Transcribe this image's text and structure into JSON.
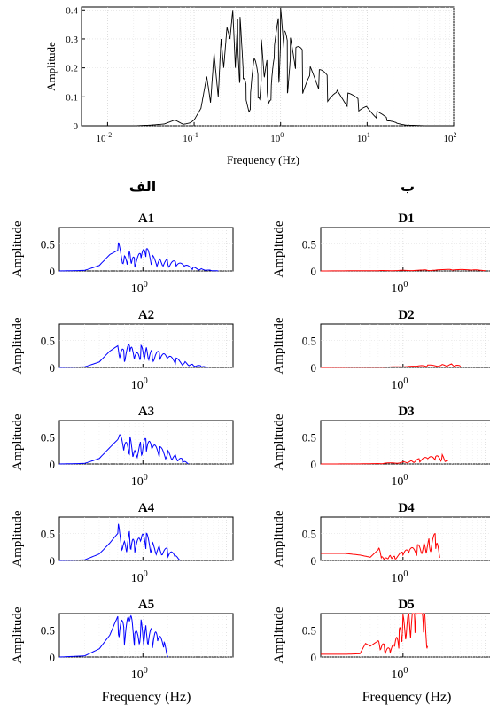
{
  "chart_data": [
    {
      "type": "line",
      "panel": "top",
      "title": "",
      "xlabel": "Frequency (Hz)",
      "ylabel": "Amplitude",
      "xscale": "log",
      "xlim": [
        0.005,
        100
      ],
      "ylim": [
        0,
        0.41
      ],
      "yticks": [
        "0",
        "0.1",
        "0.2",
        "0.3",
        "0.4"
      ],
      "xticks": [
        {
          "base": "10",
          "exp": "-2"
        },
        {
          "base": "10",
          "exp": "-1"
        },
        {
          "base": "10",
          "exp": "0"
        },
        {
          "base": "10",
          "exp": "1"
        },
        {
          "base": "10",
          "exp": "2"
        }
      ],
      "grid": true,
      "color": "#000000",
      "series": [
        {
          "x": [
            0.005,
            0.02,
            0.03,
            0.045,
            0.06,
            0.075,
            0.09,
            0.1,
            0.12,
            0.14,
            0.155,
            0.17,
            0.19,
            0.205,
            0.22,
            0.24,
            0.26,
            0.28,
            0.3,
            0.32,
            0.34,
            0.37,
            0.4,
            0.45,
            0.5,
            0.55,
            0.6,
            0.65,
            0.7,
            0.78,
            0.85,
            0.95,
            1.0,
            1.1,
            1.2,
            1.3,
            1.5,
            1.8,
            2.2,
            2.8,
            3.5,
            4.5,
            6,
            8,
            10,
            13,
            17,
            22,
            30,
            50,
            100
          ],
          "y": [
            0,
            0,
            0.002,
            0.006,
            0.02,
            0.005,
            0.01,
            0.02,
            0.06,
            0.17,
            0.08,
            0.25,
            0.1,
            0.3,
            0.2,
            0.34,
            0.3,
            0.4,
            0.2,
            0.28,
            0.26,
            0.15,
            0.1,
            0.08,
            0.2,
            0.12,
            0.21,
            0.14,
            0.16,
            0.1,
            0.22,
            0.26,
            0.3,
            0.25,
            0.2,
            0.23,
            0.2,
            0.18,
            0.16,
            0.14,
            0.12,
            0.1,
            0.08,
            0.065,
            0.055,
            0.035,
            0.02,
            0.008,
            0.002,
            0,
            0
          ]
        }
      ]
    },
    {
      "type": "line",
      "panel": "A1",
      "title": "A1",
      "ylabel": "Amplitude",
      "color": "#0000ff",
      "ylim": [
        0,
        0.8
      ],
      "yticks": [
        "0",
        "0.5"
      ],
      "xtick": {
        "base": "10",
        "exp": "0"
      },
      "series": [
        {
          "x": [
            0.1,
            0.2,
            0.3,
            0.4,
            0.5,
            0.6,
            0.7,
            0.8,
            0.95,
            1.1,
            1.3,
            1.6,
            2.0,
            2.5,
            3.2,
            4.0,
            5.0,
            6.5,
            8.0
          ],
          "y": [
            0,
            0.01,
            0.1,
            0.3,
            0.38,
            0.2,
            0.3,
            0.15,
            0.25,
            0.3,
            0.2,
            0.18,
            0.15,
            0.12,
            0.08,
            0.05,
            0.03,
            0.01,
            0
          ]
        }
      ]
    },
    {
      "type": "line",
      "panel": "D1",
      "title": "D1",
      "ylabel": "Amplitude",
      "color": "#ff0000",
      "ylim": [
        0,
        0.8
      ],
      "yticks": [
        "0",
        "0.5"
      ],
      "xtick": {
        "base": "10",
        "exp": "0"
      },
      "series": [
        {
          "x": [
            0.1,
            0.5,
            1.0,
            2.0,
            4.0,
            7.0,
            10.0
          ],
          "y": [
            0,
            0.005,
            0.01,
            0.015,
            0.02,
            0.015,
            0.01
          ]
        }
      ]
    },
    {
      "type": "line",
      "panel": "A2",
      "title": "A2",
      "ylabel": "Amplitude",
      "color": "#0000ff",
      "ylim": [
        0,
        0.8
      ],
      "yticks": [
        "0",
        "0.5"
      ],
      "xtick": {
        "base": "10",
        "exp": "0"
      },
      "series": [
        {
          "x": [
            0.1,
            0.2,
            0.3,
            0.4,
            0.5,
            0.6,
            0.7,
            0.8,
            0.95,
            1.1,
            1.3,
            1.6,
            2.0,
            2.5,
            3.2,
            4.0,
            5.0,
            6.0
          ],
          "y": [
            0,
            0.01,
            0.1,
            0.3,
            0.4,
            0.2,
            0.32,
            0.15,
            0.28,
            0.3,
            0.22,
            0.2,
            0.15,
            0.12,
            0.08,
            0.04,
            0.02,
            0
          ]
        }
      ]
    },
    {
      "type": "line",
      "panel": "D2",
      "title": "D2",
      "ylabel": "Amplitude",
      "color": "#ff0000",
      "ylim": [
        0,
        0.8
      ],
      "yticks": [
        "0",
        "0.5"
      ],
      "xtick": {
        "base": "10",
        "exp": "0"
      },
      "series": [
        {
          "x": [
            0.1,
            0.5,
            1.0,
            1.5,
            2.0,
            3.0,
            4.0,
            5.0
          ],
          "y": [
            0,
            0.005,
            0.01,
            0.02,
            0.03,
            0.04,
            0.05,
            0.02
          ]
        }
      ]
    },
    {
      "type": "line",
      "panel": "A3",
      "title": "A3",
      "ylabel": "Amplitude",
      "color": "#0000ff",
      "ylim": [
        0,
        0.8
      ],
      "yticks": [
        "0",
        "0.5"
      ],
      "xtick": {
        "base": "10",
        "exp": "0"
      },
      "series": [
        {
          "x": [
            0.1,
            0.2,
            0.3,
            0.4,
            0.5,
            0.6,
            0.7,
            0.8,
            0.95,
            1.1,
            1.3,
            1.6,
            2.0,
            2.5,
            3.0,
            3.5
          ],
          "y": [
            0,
            0.01,
            0.1,
            0.3,
            0.45,
            0.25,
            0.35,
            0.2,
            0.3,
            0.33,
            0.25,
            0.22,
            0.18,
            0.12,
            0.06,
            0
          ]
        }
      ]
    },
    {
      "type": "line",
      "panel": "D3",
      "title": "D3",
      "ylabel": "Amplitude",
      "color": "#ff0000",
      "ylim": [
        0,
        0.8
      ],
      "yticks": [
        "0",
        "0.5"
      ],
      "xtick": {
        "base": "10",
        "exp": "0"
      },
      "series": [
        {
          "x": [
            0.1,
            0.3,
            0.6,
            1.0,
            1.3,
            1.6,
            2.0,
            2.5,
            3.0,
            3.5
          ],
          "y": [
            0,
            0.002,
            0.01,
            0.03,
            0.05,
            0.07,
            0.09,
            0.1,
            0.12,
            0.05
          ]
        }
      ]
    },
    {
      "type": "line",
      "panel": "A4",
      "title": "A4",
      "ylabel": "Amplitude",
      "color": "#0000ff",
      "ylim": [
        0,
        0.8
      ],
      "yticks": [
        "0",
        "0.5"
      ],
      "xtick": {
        "base": "10",
        "exp": "0"
      },
      "series": [
        {
          "x": [
            0.1,
            0.2,
            0.3,
            0.4,
            0.5,
            0.6,
            0.7,
            0.8,
            0.95,
            1.1,
            1.3,
            1.6,
            2.0,
            2.4,
            2.8
          ],
          "y": [
            0,
            0.01,
            0.12,
            0.32,
            0.5,
            0.28,
            0.4,
            0.22,
            0.33,
            0.35,
            0.25,
            0.2,
            0.15,
            0.08,
            0
          ]
        }
      ]
    },
    {
      "type": "line",
      "panel": "D4",
      "title": "D4",
      "ylabel": "Amplitude",
      "color": "#ff0000",
      "ylim": [
        0,
        0.8
      ],
      "yticks": [
        "0",
        "0.5"
      ],
      "xtick": {
        "base": "10",
        "exp": "0"
      },
      "series": [
        {
          "x": [
            0.1,
            0.2,
            0.3,
            0.4,
            0.5,
            0.55,
            0.6,
            0.7,
            0.8,
            1.0,
            1.2,
            1.5,
            1.8,
            2.1,
            2.5,
            2.8
          ],
          "y": [
            0.13,
            0.13,
            0.1,
            0.06,
            0.2,
            0.05,
            0.03,
            0.08,
            0.05,
            0.12,
            0.15,
            0.2,
            0.25,
            0.3,
            0.35,
            0.05
          ]
        }
      ]
    },
    {
      "type": "line",
      "panel": "A5",
      "title": "A5",
      "ylabel": "Amplitude",
      "color": "#0000ff",
      "ylim": [
        0,
        0.8
      ],
      "yticks": [
        "0",
        "0.5"
      ],
      "xtick": {
        "base": "10",
        "exp": "0"
      },
      "series": [
        {
          "x": [
            0.1,
            0.2,
            0.3,
            0.4,
            0.5,
            0.6,
            0.7,
            0.8,
            0.95,
            1.1,
            1.3,
            1.5,
            1.8,
            2.0
          ],
          "y": [
            0,
            0.02,
            0.15,
            0.4,
            0.75,
            0.35,
            0.6,
            0.3,
            0.5,
            0.45,
            0.35,
            0.3,
            0.2,
            0
          ]
        }
      ]
    },
    {
      "type": "line",
      "panel": "D5",
      "title": "D5",
      "ylabel": "Amplitude",
      "color": "#ff0000",
      "ylim": [
        0,
        0.8
      ],
      "yticks": [
        "0",
        "0.5"
      ],
      "xtick": {
        "base": "10",
        "exp": "0"
      },
      "series": [
        {
          "x": [
            0.1,
            0.2,
            0.3,
            0.35,
            0.4,
            0.5,
            0.6,
            0.7,
            0.8,
            0.9,
            1.0,
            1.2,
            1.4,
            1.6,
            1.8,
            2.0
          ],
          "y": [
            0.05,
            0.05,
            0.06,
            0.25,
            0.2,
            0.3,
            0.15,
            0.1,
            0.2,
            0.35,
            0.6,
            0.7,
            0.75,
            0.72,
            0.65,
            0.2
          ]
        }
      ]
    }
  ],
  "columns": {
    "left_label": "الف",
    "right_label": "ب",
    "xlabel_left": "Frequency (Hz)",
    "xlabel_right": "Frequency (Hz)"
  }
}
